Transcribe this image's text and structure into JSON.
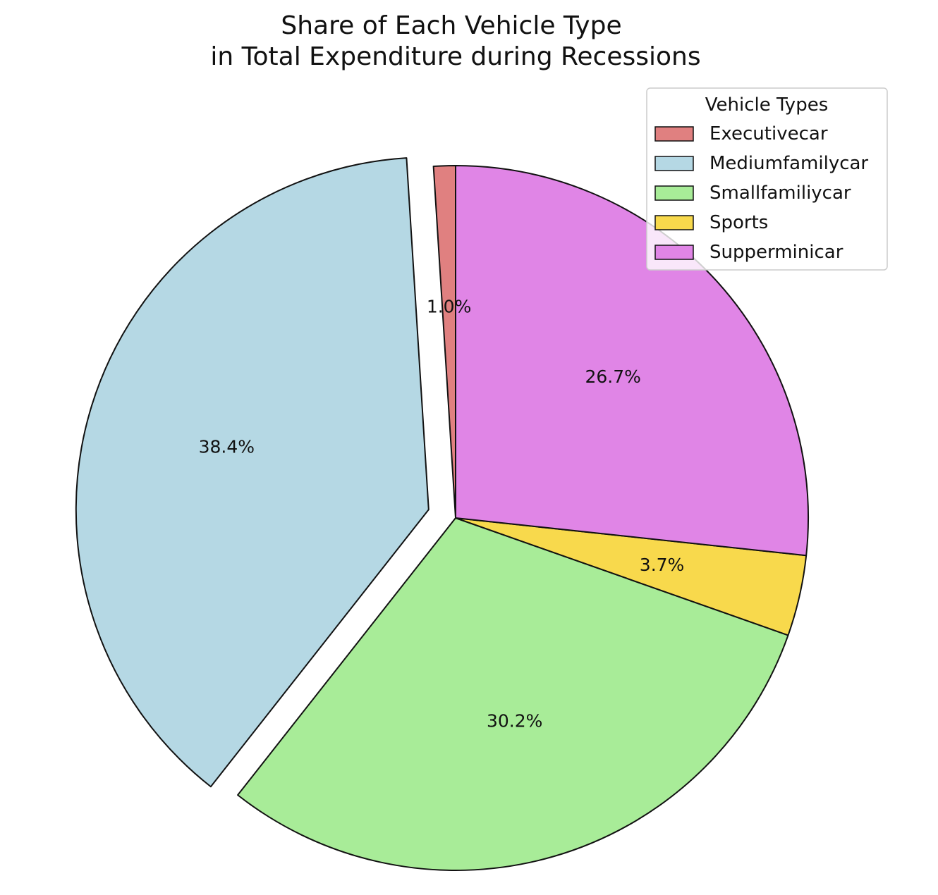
{
  "chart_data": {
    "type": "pie",
    "title_lines": [
      "Share of Each Vehicle Type",
      "in Total Expenditure during Recessions"
    ],
    "categories": [
      "Executivecar",
      "Mediumfamilycar",
      "Smallfamiliycar",
      "Sports",
      "Supperminicar"
    ],
    "values": [
      1.0,
      38.4,
      30.2,
      3.7,
      26.7
    ],
    "labels": [
      "1.0%",
      "38.4%",
      "30.2%",
      "3.7%",
      "26.7%"
    ],
    "colors": [
      "#e08080",
      "#b5d8e4",
      "#a8ec98",
      "#f8d94c",
      "#e085e6"
    ],
    "exploded": [
      "Mediumfamilycar"
    ],
    "start_angle_deg": 90,
    "direction": "counterclockwise",
    "legend": {
      "title": "Vehicle Types",
      "placement": "top-right"
    }
  }
}
